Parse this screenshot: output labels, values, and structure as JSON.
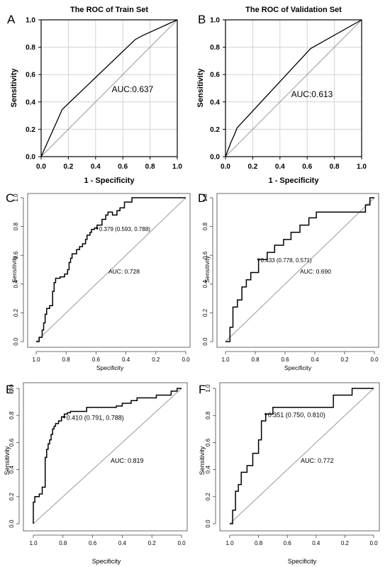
{
  "chart_data": [
    {
      "panel": "A",
      "type": "line",
      "title": "The ROC of Train Set",
      "xlabel": "1 - Specificity",
      "ylabel": "Sensitivity",
      "xlim": [
        0,
        1
      ],
      "ylim": [
        0,
        1
      ],
      "x_ticks": [
        "0.0",
        "0.2",
        "0.4",
        "0.6",
        "0.8",
        "1.0"
      ],
      "y_ticks": [
        "0.0",
        "0.2",
        "0.4",
        "0.6",
        "0.8",
        "1.0"
      ],
      "auc_label": "AUC:0.637",
      "annotation": "",
      "diagonal": true,
      "series": [
        {
          "x": [
            0,
            0.155,
            0.69,
            0.745,
            1.0
          ],
          "y": [
            0,
            0.345,
            0.855,
            0.885,
            1.0
          ]
        }
      ]
    },
    {
      "panel": "B",
      "type": "line",
      "title": "The ROC of Validation Set",
      "xlabel": "1 - Specificity",
      "ylabel": "Sensitivity",
      "xlim": [
        0,
        1
      ],
      "ylim": [
        0,
        1
      ],
      "x_ticks": [
        "0.0",
        "0.2",
        "0.4",
        "0.6",
        "0.8",
        "1.0"
      ],
      "y_ticks": [
        "0.0",
        "0.2",
        "0.4",
        "0.6",
        "0.8",
        "1.0"
      ],
      "auc_label": "AUC:0.613",
      "annotation": "",
      "diagonal": true,
      "series": [
        {
          "x": [
            0,
            0.04,
            0.065,
            0.085,
            0.625,
            1.0
          ],
          "y": [
            0,
            0.105,
            0.16,
            0.21,
            0.79,
            1.0
          ]
        }
      ]
    },
    {
      "panel": "C",
      "type": "line",
      "title": "",
      "xlabel": "Specificity",
      "ylabel": "Sensitivity",
      "xlim": [
        1,
        0
      ],
      "ylim": [
        0,
        1
      ],
      "x_ticks": [
        "1.0",
        "0.8",
        "0.6",
        "0.4",
        "0.2",
        "0.0"
      ],
      "y_ticks": [
        "0.0",
        "0.2",
        "0.4",
        "0.6",
        "0.8",
        "1.0"
      ],
      "auc_label": "AUC: 0.728",
      "annotation": "0.379 (0.593, 0.788)",
      "annotation_point": [
        0.593,
        0.788
      ],
      "diagonal": true,
      "series": [
        {
          "x": [
            1.0,
            0.98,
            0.98,
            0.96,
            0.96,
            0.95,
            0.95,
            0.94,
            0.94,
            0.93,
            0.93,
            0.91,
            0.91,
            0.89,
            0.89,
            0.88,
            0.88,
            0.87,
            0.87,
            0.84,
            0.84,
            0.81,
            0.81,
            0.79,
            0.79,
            0.78,
            0.78,
            0.77,
            0.77,
            0.76,
            0.76,
            0.73,
            0.73,
            0.71,
            0.71,
            0.69,
            0.69,
            0.67,
            0.67,
            0.66,
            0.66,
            0.64,
            0.64,
            0.63,
            0.63,
            0.61,
            0.61,
            0.593,
            0.593,
            0.56,
            0.56,
            0.535,
            0.535,
            0.52,
            0.52,
            0.49,
            0.49,
            0.46,
            0.46,
            0.44,
            0.44,
            0.41,
            0.41,
            0.36,
            0.36,
            0.0
          ],
          "y": [
            0.0,
            0.0,
            0.03,
            0.03,
            0.08,
            0.08,
            0.13,
            0.13,
            0.19,
            0.19,
            0.23,
            0.23,
            0.25,
            0.25,
            0.35,
            0.35,
            0.41,
            0.41,
            0.44,
            0.44,
            0.45,
            0.45,
            0.47,
            0.47,
            0.5,
            0.5,
            0.55,
            0.55,
            0.58,
            0.58,
            0.61,
            0.61,
            0.64,
            0.64,
            0.66,
            0.66,
            0.68,
            0.68,
            0.71,
            0.71,
            0.74,
            0.74,
            0.76,
            0.76,
            0.78,
            0.78,
            0.79,
            0.79,
            0.81,
            0.81,
            0.85,
            0.85,
            0.88,
            0.88,
            0.9,
            0.9,
            0.88,
            0.88,
            0.91,
            0.91,
            0.93,
            0.93,
            0.97,
            0.97,
            1.0,
            1.0
          ]
        }
      ]
    },
    {
      "panel": "D",
      "type": "line",
      "title": "",
      "xlabel": "Specificity",
      "ylabel": "Sensitivity",
      "xlim": [
        1,
        0
      ],
      "ylim": [
        0,
        1
      ],
      "x_ticks": [
        "1.0",
        "0.8",
        "0.6",
        "0.4",
        "0.2",
        "0.0"
      ],
      "y_ticks": [
        "0.0",
        "0.2",
        "0.4",
        "0.6",
        "0.8",
        "1.0"
      ],
      "auc_label": "AUC: 0.690",
      "annotation": "0.433 (0.778, 0.571)",
      "annotation_point": [
        0.778,
        0.571
      ],
      "diagonal": true,
      "series": [
        {
          "x": [
            1.0,
            0.97,
            0.97,
            0.95,
            0.95,
            0.92,
            0.92,
            0.89,
            0.89,
            0.86,
            0.86,
            0.83,
            0.83,
            0.778,
            0.778,
            0.72,
            0.72,
            0.67,
            0.67,
            0.61,
            0.61,
            0.56,
            0.56,
            0.5,
            0.5,
            0.44,
            0.44,
            0.39,
            0.39,
            0.06,
            0.06,
            0.03,
            0.03,
            0.0
          ],
          "y": [
            0.0,
            0.0,
            0.1,
            0.1,
            0.24,
            0.24,
            0.29,
            0.29,
            0.38,
            0.38,
            0.43,
            0.43,
            0.48,
            0.48,
            0.571,
            0.571,
            0.62,
            0.62,
            0.67,
            0.67,
            0.71,
            0.71,
            0.76,
            0.76,
            0.81,
            0.81,
            0.86,
            0.86,
            0.9,
            0.9,
            0.95,
            0.95,
            1.0,
            1.0
          ]
        }
      ]
    },
    {
      "panel": "E",
      "type": "line",
      "title": "",
      "xlabel": "Specificity",
      "ylabel": "Sensitivity",
      "xlim": [
        1,
        0
      ],
      "ylim": [
        0,
        1
      ],
      "x_ticks": [
        "1.0",
        "0.8",
        "0.6",
        "0.4",
        "0.2",
        "0.0"
      ],
      "y_ticks": [
        "0.0",
        "0.2",
        "0.4",
        "0.6",
        "0.8",
        "1.0"
      ],
      "auc_label": "AUC: 0.819",
      "annotation": "0.410 (0.791, 0.788)",
      "annotation_point": [
        0.791,
        0.788
      ],
      "diagonal": true,
      "series": [
        {
          "x": [
            1.0,
            1.0,
            0.99,
            0.99,
            0.96,
            0.96,
            0.94,
            0.94,
            0.92,
            0.92,
            0.91,
            0.91,
            0.9,
            0.9,
            0.89,
            0.89,
            0.88,
            0.88,
            0.87,
            0.87,
            0.86,
            0.86,
            0.85,
            0.85,
            0.83,
            0.83,
            0.81,
            0.81,
            0.791,
            0.791,
            0.77,
            0.77,
            0.75,
            0.75,
            0.64,
            0.64,
            0.44,
            0.44,
            0.4,
            0.4,
            0.34,
            0.34,
            0.3,
            0.3,
            0.17,
            0.17,
            0.07,
            0.07,
            0.03,
            0.03,
            0.0
          ],
          "y": [
            0.0,
            0.16,
            0.16,
            0.2,
            0.2,
            0.22,
            0.22,
            0.27,
            0.27,
            0.49,
            0.49,
            0.55,
            0.55,
            0.59,
            0.59,
            0.62,
            0.62,
            0.66,
            0.66,
            0.7,
            0.7,
            0.72,
            0.72,
            0.74,
            0.74,
            0.76,
            0.76,
            0.79,
            0.79,
            0.81,
            0.81,
            0.82,
            0.82,
            0.83,
            0.83,
            0.86,
            0.86,
            0.87,
            0.87,
            0.89,
            0.89,
            0.91,
            0.91,
            0.93,
            0.93,
            0.95,
            0.95,
            0.98,
            0.98,
            1.0,
            1.0
          ]
        }
      ]
    },
    {
      "panel": "F",
      "type": "line",
      "title": "",
      "xlabel": "Specificity",
      "ylabel": "Sensitivity",
      "xlim": [
        1,
        0
      ],
      "ylim": [
        0,
        1
      ],
      "x_ticks": [
        "1.0",
        "0.8",
        "0.6",
        "0.4",
        "0.2",
        "0.0"
      ],
      "y_ticks": [
        "0.0",
        "0.2",
        "0.4",
        "0.6",
        "0.8",
        "1.0"
      ],
      "auc_label": "AUC: 0.772",
      "annotation": "0.351 (0.750, 0.810)",
      "annotation_point": [
        0.75,
        0.81
      ],
      "diagonal": true,
      "series": [
        {
          "x": [
            1.0,
            0.98,
            0.98,
            0.96,
            0.96,
            0.94,
            0.94,
            0.92,
            0.92,
            0.88,
            0.88,
            0.84,
            0.84,
            0.8,
            0.8,
            0.78,
            0.78,
            0.75,
            0.75,
            0.7,
            0.7,
            0.28,
            0.28,
            0.15,
            0.15,
            0.0
          ],
          "y": [
            0.0,
            0.0,
            0.1,
            0.1,
            0.24,
            0.24,
            0.29,
            0.29,
            0.38,
            0.38,
            0.43,
            0.43,
            0.52,
            0.52,
            0.62,
            0.62,
            0.76,
            0.76,
            0.81,
            0.81,
            0.86,
            0.86,
            0.95,
            0.95,
            1.0,
            1.0
          ]
        }
      ]
    }
  ],
  "colors": {
    "curve": "#000000",
    "diagonal": "#999999",
    "axis": "#000000",
    "grid": "#d3d3d3"
  }
}
